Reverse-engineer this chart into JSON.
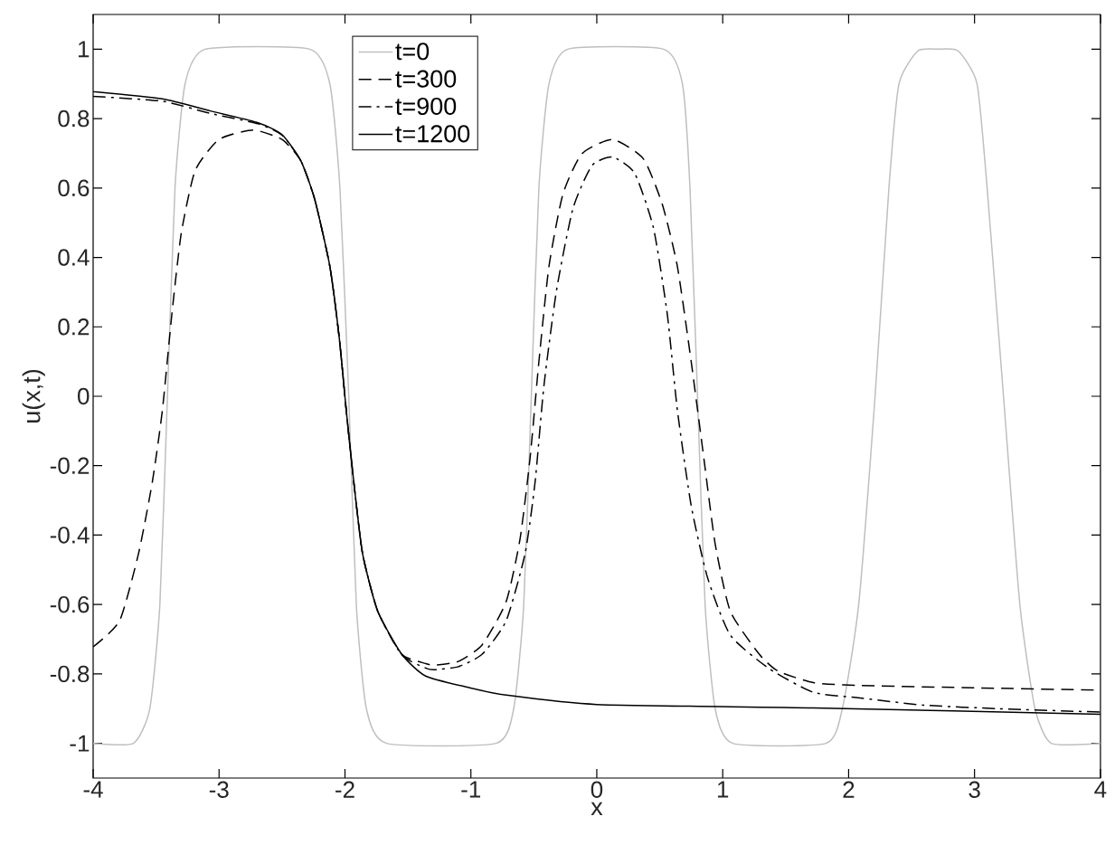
{
  "chart_data": {
    "type": "line",
    "xlabel": "x",
    "ylabel": "u(x,t)",
    "xlim": [
      -4,
      4
    ],
    "ylim": [
      -1.1,
      1.1
    ],
    "xticks": [
      -4,
      -3,
      -2,
      -1,
      0,
      1,
      2,
      3,
      4
    ],
    "yticks": [
      -1,
      -0.8,
      -0.6,
      -0.4,
      -0.2,
      0,
      0.2,
      0.4,
      0.6,
      0.8,
      1
    ],
    "grid": false,
    "legend": "top left",
    "marker": "none",
    "series": [
      {
        "name": "t=0",
        "color": "#bfbfbf",
        "line_style": "solid",
        "x": [
          -4,
          -3.68,
          -3.55,
          -3.47,
          -3.41,
          -3.35,
          -3.27,
          -3.11,
          -2.28,
          -2.12,
          -2.04,
          -1.97,
          -1.91,
          -1.83,
          -1.67,
          -0.8,
          -0.66,
          -0.58,
          -0.52,
          -0.46,
          -0.38,
          -0.23,
          0.53,
          0.68,
          0.74,
          0.8,
          0.86,
          0.94,
          1.08,
          1.82,
          1.95,
          2.08,
          2.21,
          2.32,
          2.4,
          2.55,
          2.71,
          2.87,
          3.02,
          3.1,
          3.23,
          3.36,
          3.48,
          3.61,
          4
        ],
        "values": [
          -1,
          -1,
          -0.9,
          -0.6,
          0,
          0.6,
          0.9,
          1,
          1,
          0.9,
          0.6,
          0,
          -0.6,
          -0.9,
          -1,
          -1,
          -0.9,
          -0.6,
          0,
          0.6,
          0.9,
          1,
          1,
          0.9,
          0.6,
          0,
          -0.6,
          -0.9,
          -1,
          -1,
          -0.9,
          -0.6,
          0,
          0.6,
          0.9,
          0.995,
          1,
          0.995,
          0.9,
          0.6,
          0,
          -0.6,
          -0.9,
          -1,
          -1
        ]
      },
      {
        "name": "t=300",
        "color": "#000000",
        "line_style": "dashed",
        "x": [
          -4,
          -3.79,
          -3.64,
          -3.53,
          -3.45,
          -3.375,
          -3.3,
          -3.19,
          -3,
          -2.73,
          -2.5,
          -2.35,
          -2.24,
          -2.12,
          -2.045,
          -1.99,
          -1.93,
          -1.86,
          -1.74,
          -1.55,
          -1.36,
          -1.29,
          -1.1,
          -0.91,
          -0.72,
          -0.61,
          -0.53,
          -0.46,
          -0.38,
          -0.27,
          -0.12,
          0.125,
          0.37,
          0.52,
          0.64,
          0.75,
          0.85,
          0.94,
          1.06,
          1.29,
          1.44,
          1.72,
          2.06,
          3,
          4
        ],
        "values": [
          -0.722,
          -0.647,
          -0.454,
          -0.247,
          -0.04,
          0.236,
          0.47,
          0.65,
          0.74,
          0.767,
          0.74,
          0.678,
          0.567,
          0.374,
          0.167,
          -0.04,
          -0.247,
          -0.454,
          -0.619,
          -0.743,
          -0.77,
          -0.775,
          -0.764,
          -0.716,
          -0.592,
          -0.412,
          -0.178,
          0.099,
          0.374,
          0.581,
          0.698,
          0.74,
          0.684,
          0.553,
          0.374,
          0.099,
          -0.178,
          -0.425,
          -0.619,
          -0.743,
          -0.792,
          -0.825,
          -0.833,
          -0.84,
          -0.847
        ]
      },
      {
        "name": "t=900",
        "color": "#000000",
        "line_style": "dashdot",
        "x": [
          -4,
          -3.45,
          -3.07,
          -2.69,
          -2.5,
          -2.35,
          -2.24,
          -2.12,
          -2.045,
          -1.99,
          -1.93,
          -1.86,
          -1.74,
          -1.55,
          -1.36,
          -1.29,
          -1.1,
          -0.91,
          -0.72,
          -0.57,
          -0.49,
          -0.42,
          -0.32,
          -0.19,
          -0.04,
          0.125,
          0.3,
          0.45,
          0.56,
          0.64,
          0.75,
          0.88,
          1.06,
          1.37,
          1.72,
          2.06,
          2.6,
          3.18,
          4
        ],
        "values": [
          0.864,
          0.85,
          0.815,
          0.785,
          0.752,
          0.678,
          0.567,
          0.374,
          0.167,
          -0.04,
          -0.247,
          -0.454,
          -0.619,
          -0.745,
          -0.783,
          -0.788,
          -0.779,
          -0.743,
          -0.647,
          -0.454,
          -0.247,
          0.03,
          0.305,
          0.54,
          0.664,
          0.689,
          0.643,
          0.485,
          0.236,
          -0.04,
          -0.316,
          -0.523,
          -0.688,
          -0.785,
          -0.853,
          -0.868,
          -0.89,
          -0.9,
          -0.91
        ]
      },
      {
        "name": "t=1200",
        "color": "#000000",
        "line_style": "solid",
        "x": [
          -4,
          -3.45,
          -3.07,
          -2.69,
          -2.5,
          -2.35,
          -2.24,
          -2.12,
          -2.045,
          -1.99,
          -1.93,
          -1.86,
          -1.74,
          -1.55,
          -1.36,
          -1.01,
          -0.72,
          0,
          1.72,
          4
        ],
        "values": [
          0.878,
          0.857,
          0.822,
          0.788,
          0.754,
          0.678,
          0.567,
          0.374,
          0.167,
          -0.04,
          -0.247,
          -0.454,
          -0.619,
          -0.743,
          -0.806,
          -0.84,
          -0.861,
          -0.888,
          -0.898,
          -0.916
        ]
      }
    ]
  }
}
